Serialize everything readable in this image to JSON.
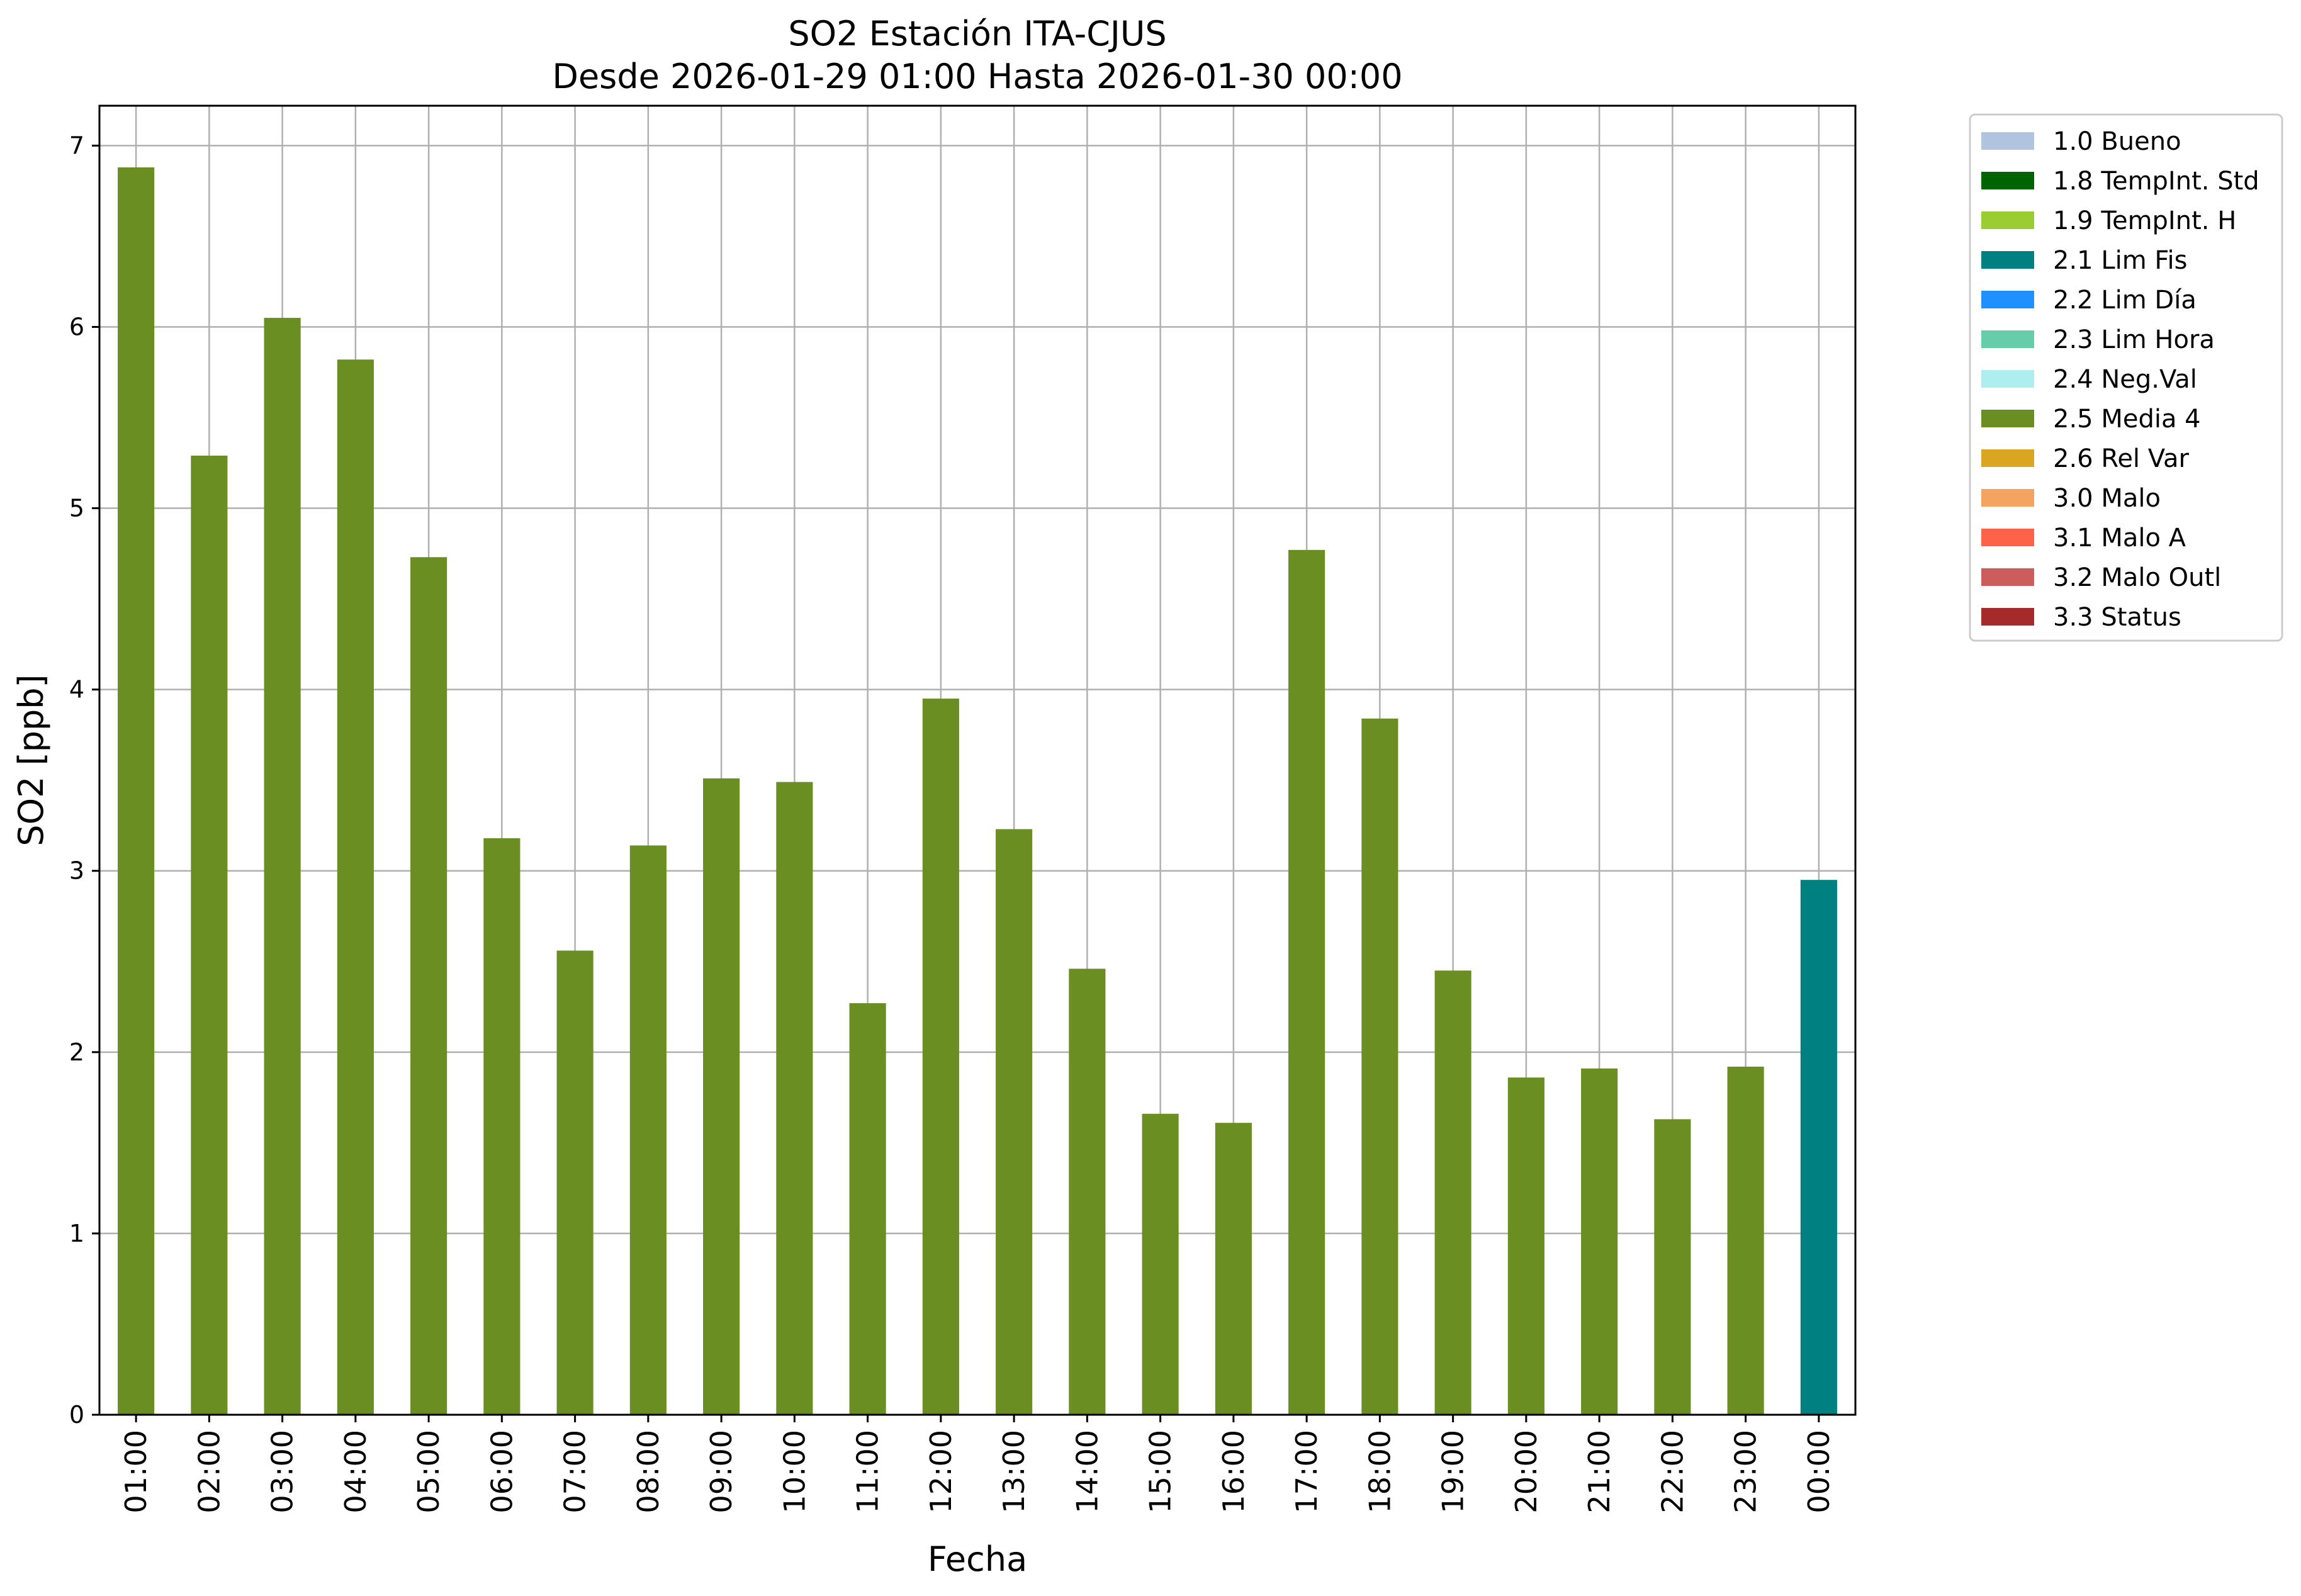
{
  "chart_data": {
    "type": "bar",
    "title": "SO2 Estación ITA-CJUS",
    "subtitle": "Desde 2026-01-29 01:00 Hasta 2026-01-30 00:00",
    "xlabel": "Fecha",
    "ylabel": "SO2 [ppb]",
    "ylim": [
      0,
      7.22
    ],
    "yticks": [
      "0",
      "1",
      "2",
      "3",
      "4",
      "5",
      "6",
      "7"
    ],
    "grid": true,
    "legend_placement": "outside top-right",
    "categories": [
      "01:00",
      "02:00",
      "03:00",
      "04:00",
      "05:00",
      "06:00",
      "07:00",
      "08:00",
      "09:00",
      "10:00",
      "11:00",
      "12:00",
      "13:00",
      "14:00",
      "15:00",
      "16:00",
      "17:00",
      "18:00",
      "19:00",
      "20:00",
      "21:00",
      "22:00",
      "23:00",
      "00:00"
    ],
    "values": [
      6.88,
      5.29,
      6.05,
      5.82,
      4.73,
      3.18,
      2.56,
      3.14,
      3.51,
      3.49,
      2.27,
      3.95,
      3.23,
      2.46,
      1.66,
      1.61,
      4.77,
      3.84,
      2.45,
      1.86,
      1.91,
      1.63,
      1.92,
      2.95
    ],
    "bar_flags": [
      "2.5 Media 4",
      "2.5 Media 4",
      "2.5 Media 4",
      "2.5 Media 4",
      "2.5 Media 4",
      "2.5 Media 4",
      "2.5 Media 4",
      "2.5 Media 4",
      "2.5 Media 4",
      "2.5 Media 4",
      "2.5 Media 4",
      "2.5 Media 4",
      "2.5 Media 4",
      "2.5 Media 4",
      "2.5 Media 4",
      "2.5 Media 4",
      "2.5 Media 4",
      "2.5 Media 4",
      "2.5 Media 4",
      "2.5 Media 4",
      "2.5 Media 4",
      "2.5 Media 4",
      "2.5 Media 4",
      "2.1 Lim Fis"
    ],
    "legend": [
      {
        "label": "1.0 Bueno",
        "color": "#b0c4de"
      },
      {
        "label": "1.8 TempInt. Std",
        "color": "#006400"
      },
      {
        "label": "1.9 TempInt. H",
        "color": "#9acd32"
      },
      {
        "label": "2.1 Lim Fis",
        "color": "#008080"
      },
      {
        "label": "2.2 Lim Día",
        "color": "#1e90ff"
      },
      {
        "label": "2.3 Lim Hora",
        "color": "#66cdaa"
      },
      {
        "label": "2.4 Neg.Val",
        "color": "#afeeee"
      },
      {
        "label": "2.5 Media 4",
        "color": "#6b8e23"
      },
      {
        "label": "2.6 Rel Var",
        "color": "#daa520"
      },
      {
        "label": "3.0 Malo",
        "color": "#f4a460"
      },
      {
        "label": "3.1 Malo A",
        "color": "#ff6347"
      },
      {
        "label": "3.2 Malo Outl",
        "color": "#cd5c5c"
      },
      {
        "label": "3.3 Status",
        "color": "#a52a2a"
      }
    ]
  }
}
